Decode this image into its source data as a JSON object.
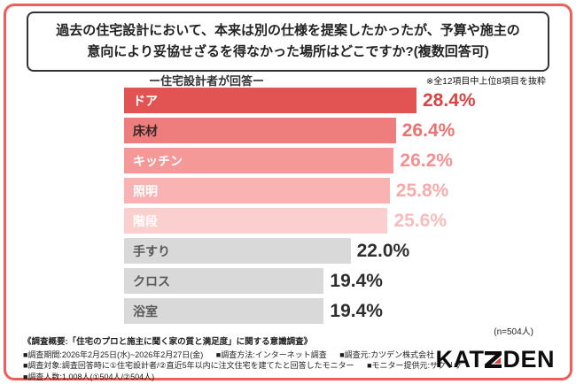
{
  "accent": {
    "frame_border": "#ef5e5c",
    "logo_red": "#e03a3a",
    "logo_black": "#0d0d0d"
  },
  "title": {
    "line1": "過去の住宅設計において、本来は別の仕様を提案したかったが、予算や施主の",
    "line2": "意向により妥協せざるを得なかった場所はどこですか?(複数回答可)"
  },
  "note": "※全12項目中上位8項目を抜粋",
  "chart_header": "ー住宅設計者が回答ー",
  "chart_data": {
    "type": "bar",
    "orientation": "horizontal",
    "title": "過去の住宅設計において、本来は別の仕様を提案したかったが、予算や施主の意向により妥協せざるを得なかった場所はどこですか?(複数回答可)",
    "subtitle": "ー住宅設計者が回答ー",
    "categories": [
      "ドア",
      "床材",
      "キッチン",
      "照明",
      "階段",
      "手すり",
      "クロス",
      "浴室"
    ],
    "values": [
      28.4,
      26.4,
      26.2,
      25.8,
      25.6,
      22.0,
      19.4,
      19.4
    ],
    "value_labels": [
      "28.4%",
      "26.4%",
      "26.2%",
      "25.8%",
      "25.6%",
      "22.0%",
      "19.4%",
      "19.4%"
    ],
    "unit": "%",
    "xlim": [
      0,
      28.4
    ],
    "grid": false,
    "legend": false,
    "sample_note": "(n=504人)",
    "bar_colors": [
      "#e25353",
      "#ee7d7d",
      "#f59898",
      "#f9b3b3",
      "#fccfcf",
      "#d9d9d9",
      "#d9d9d9",
      "#d9d9d9"
    ],
    "category_label_colors": [
      "#ffffff",
      "#3a2727",
      "#ffffff",
      "#ffffff",
      "#ffffff",
      "#595959",
      "#595959",
      "#595959"
    ],
    "value_label_colors": [
      "#d94545",
      "#ec7272",
      "#f39090",
      "#f7acac",
      "#f9bcbc",
      "#2e2e2e",
      "#2e2e2e",
      "#2e2e2e"
    ]
  },
  "footer": {
    "heading": "《調査概要:「住宅のプロと施主に聞く家の質と満足度」に関する意識調査》",
    "items": [
      "■調査期間:2026年2月25日(水)~2026年2月27日(金)",
      "■調査方法:インターネット調査",
      "■調査元:カツデン株式会社",
      "■調査対象:調査回答時に①住宅設計者/②直近5年以内に注文住宅を建てたと回答したモニター",
      "■モニター提供元:サクリサ",
      "■調査人数:1,008人(①504人/②504人)"
    ],
    "logo_text_left": "KAT",
    "logo_text_right": "DEN",
    "logo_full": "KATZDEN"
  }
}
